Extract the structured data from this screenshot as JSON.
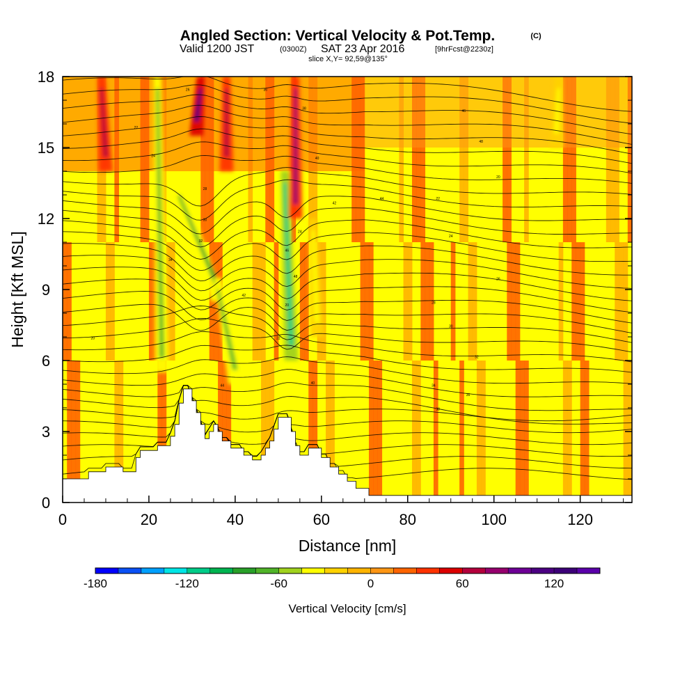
{
  "chart_data": {
    "type": "heatmap",
    "title": "Angled Section: Vertical Velocity & Pot.Temp.",
    "title_suffix": "(C)",
    "subtitle": {
      "valid_label": "Valid 1200 JST",
      "zulu": "(0300Z)",
      "date": "SAT 23 Apr 2016",
      "forecast": "[9hrFcst@2230z]"
    },
    "slice_label": "slice X,Y= 92,59@135°",
    "xlabel": "Distance [nm]",
    "ylabel": "Height [Kft MSL]",
    "xlim": [
      0,
      132
    ],
    "ylim": [
      0,
      18
    ],
    "x_ticks": [
      "0",
      "20",
      "40",
      "60",
      "80",
      "100",
      "120"
    ],
    "x_tick_values": [
      0,
      20,
      40,
      60,
      80,
      100,
      120
    ],
    "y_ticks": [
      "0",
      "3",
      "6",
      "9",
      "12",
      "15",
      "18"
    ],
    "y_tick_values": [
      0,
      3,
      6,
      9,
      12,
      15,
      18
    ],
    "terrain_profile": [
      [
        0,
        1.0
      ],
      [
        6,
        1.0
      ],
      [
        6,
        1.3
      ],
      [
        10,
        1.3
      ],
      [
        10,
        1.5
      ],
      [
        14,
        1.5
      ],
      [
        14,
        1.3
      ],
      [
        17,
        1.3
      ],
      [
        17,
        1.9
      ],
      [
        18,
        1.9
      ],
      [
        18,
        2.2
      ],
      [
        22,
        2.2
      ],
      [
        22,
        2.4
      ],
      [
        25,
        2.4
      ],
      [
        25,
        2.8
      ],
      [
        26,
        2.8
      ],
      [
        26,
        3.3
      ],
      [
        27,
        3.3
      ],
      [
        27,
        4.2
      ],
      [
        28,
        4.2
      ],
      [
        28,
        4.8
      ],
      [
        30,
        4.8
      ],
      [
        30,
        4.3
      ],
      [
        31,
        4.3
      ],
      [
        31,
        3.8
      ],
      [
        32,
        3.8
      ],
      [
        32,
        3.3
      ],
      [
        33,
        3.3
      ],
      [
        33,
        2.7
      ],
      [
        34,
        2.7
      ],
      [
        34,
        3.0
      ],
      [
        35,
        3.0
      ],
      [
        35,
        3.3
      ],
      [
        36,
        3.3
      ],
      [
        36,
        3.0
      ],
      [
        37,
        3.0
      ],
      [
        37,
        2.6
      ],
      [
        39,
        2.6
      ],
      [
        39,
        2.3
      ],
      [
        42,
        2.3
      ],
      [
        42,
        2.0
      ],
      [
        44,
        2.0
      ],
      [
        44,
        1.8
      ],
      [
        46,
        1.8
      ],
      [
        46,
        2.0
      ],
      [
        47,
        2.0
      ],
      [
        47,
        2.3
      ],
      [
        48,
        2.3
      ],
      [
        48,
        2.6
      ],
      [
        49,
        2.6
      ],
      [
        49,
        3.1
      ],
      [
        50,
        3.1
      ],
      [
        50,
        3.6
      ],
      [
        53,
        3.6
      ],
      [
        53,
        3.0
      ],
      [
        54,
        3.0
      ],
      [
        54,
        2.4
      ],
      [
        55,
        2.4
      ],
      [
        55,
        2.0
      ],
      [
        57,
        2.0
      ],
      [
        57,
        2.3
      ],
      [
        60,
        2.3
      ],
      [
        60,
        1.9
      ],
      [
        62,
        1.9
      ],
      [
        62,
        1.5
      ],
      [
        64,
        1.5
      ],
      [
        64,
        1.2
      ],
      [
        66,
        1.2
      ],
      [
        66,
        0.9
      ],
      [
        68,
        0.9
      ],
      [
        68,
        0.6
      ],
      [
        71,
        0.6
      ],
      [
        71,
        0.3
      ],
      [
        132,
        0.3
      ]
    ],
    "contour_labels": [
      "20",
      "22",
      "24",
      "26",
      "28",
      "30",
      "32",
      "34",
      "36",
      "38",
      "40",
      "42",
      "44",
      "46",
      "48"
    ],
    "colorbar": {
      "label": "Vertical Velocity [cm/s]",
      "tick_labels": [
        "-180",
        "-120",
        "-60",
        "0",
        "60",
        "120"
      ],
      "tick_values": [
        -180,
        -120,
        -60,
        0,
        60,
        120
      ],
      "range": [
        -180,
        150
      ],
      "step": 15,
      "colors": [
        "#0000ff",
        "#0a50f5",
        "#00a0ff",
        "#00e6e6",
        "#00cc88",
        "#00b450",
        "#28a028",
        "#50b428",
        "#a0d21e",
        "#ffff00",
        "#ffd200",
        "#ffb400",
        "#ff9614",
        "#ff6400",
        "#ff3200",
        "#dc0000",
        "#b4003c",
        "#96006e",
        "#6e0096",
        "#4b0082",
        "#3c0078",
        "#5a00aa"
      ]
    },
    "plumes": [
      {
        "x_top": 22,
        "x_bottom": 23,
        "y_top": 18,
        "y_bottom": 5.5,
        "w": -75
      },
      {
        "x_top": 27,
        "x_bottom": 36,
        "y_top": 13.5,
        "y_bottom": 8.5,
        "w": -90
      },
      {
        "x_top": 36,
        "x_bottom": 40,
        "y_top": 9.5,
        "y_bottom": 5,
        "w": -75
      },
      {
        "x_top": 51.5,
        "x_bottom": 53,
        "y_top": 14,
        "y_bottom": 6,
        "w": -120
      },
      {
        "x_top": 58,
        "x_bottom": 59,
        "y_top": 12,
        "y_bottom": 7,
        "w": -45
      },
      {
        "x_top": 115,
        "x_bottom": 114.5,
        "y_top": 18,
        "y_bottom": 15,
        "w": -45
      },
      {
        "x_top": 32,
        "x_bottom": 31,
        "y_top": 18,
        "y_bottom": 15.5,
        "w": 105
      },
      {
        "x_top": 54,
        "x_bottom": 54,
        "y_top": 18,
        "y_bottom": 12,
        "w": 75
      },
      {
        "x_top": 9,
        "x_bottom": 10,
        "y_top": 18,
        "y_bottom": 14,
        "w": 60
      },
      {
        "x_top": 38,
        "x_bottom": 38,
        "y_top": 18,
        "y_bottom": 14,
        "w": 60
      }
    ]
  }
}
